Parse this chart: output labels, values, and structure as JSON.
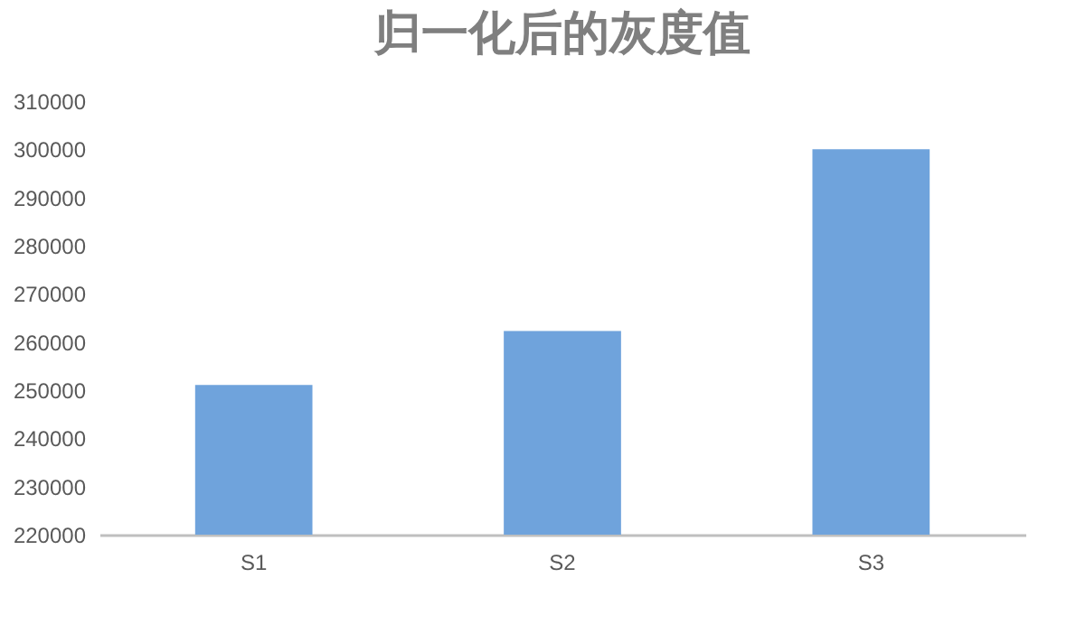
{
  "chart_data": {
    "type": "bar",
    "title": "归一化后的灰度值",
    "categories": [
      "S1",
      "S2",
      "S3"
    ],
    "values": [
      251100,
      262300,
      300000
    ],
    "color": "#6fa3dc",
    "ylim": [
      220000,
      310000
    ],
    "yticks": [
      220000,
      230000,
      240000,
      250000,
      260000,
      270000,
      280000,
      290000,
      300000,
      310000
    ],
    "grid": false
  }
}
